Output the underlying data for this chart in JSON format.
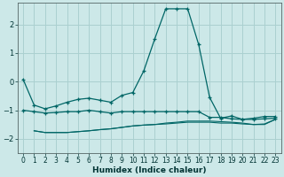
{
  "xlabel": "Humidex (Indice chaleur)",
  "background_color": "#cce8e8",
  "grid_color": "#aad0d0",
  "line_color": "#006666",
  "xlim": [
    -0.5,
    23.5
  ],
  "ylim": [
    -2.5,
    2.75
  ],
  "yticks": [
    -2,
    -1,
    0,
    1,
    2
  ],
  "xticks": [
    0,
    1,
    2,
    3,
    4,
    5,
    6,
    7,
    8,
    9,
    10,
    11,
    12,
    13,
    14,
    15,
    16,
    17,
    18,
    19,
    20,
    21,
    22,
    23
  ],
  "line1_x": [
    0,
    1,
    2,
    3,
    4,
    5,
    6,
    7,
    8,
    9,
    10,
    11,
    12,
    13,
    14,
    15,
    16,
    17,
    18,
    19,
    20,
    21,
    22,
    23
  ],
  "line1_y": [
    0.08,
    -0.82,
    -0.95,
    -0.85,
    -0.72,
    -0.62,
    -0.58,
    -0.65,
    -0.72,
    -0.48,
    -0.38,
    0.38,
    1.5,
    2.55,
    2.55,
    2.55,
    1.3,
    -0.55,
    -1.28,
    -1.2,
    -1.32,
    -1.28,
    -1.22,
    -1.22
  ],
  "line2_x": [
    0,
    1,
    2,
    3,
    4,
    5,
    6,
    7,
    8,
    9,
    10,
    11,
    12,
    13,
    14,
    15,
    16,
    17,
    18,
    19,
    20,
    21,
    22,
    23
  ],
  "line2_y": [
    -1.0,
    -1.05,
    -1.1,
    -1.08,
    -1.05,
    -1.05,
    -1.0,
    -1.05,
    -1.1,
    -1.05,
    -1.05,
    -1.05,
    -1.05,
    -1.05,
    -1.05,
    -1.05,
    -1.05,
    -1.25,
    -1.25,
    -1.3,
    -1.32,
    -1.32,
    -1.3,
    -1.28
  ],
  "line3_x": [
    1,
    2,
    3,
    4,
    5,
    6,
    7,
    8,
    9,
    10,
    11,
    12,
    13,
    14,
    15,
    16,
    17,
    18,
    19,
    20,
    21,
    22,
    23
  ],
  "line3_y": [
    -1.72,
    -1.78,
    -1.78,
    -1.78,
    -1.75,
    -1.72,
    -1.68,
    -1.65,
    -1.6,
    -1.55,
    -1.52,
    -1.5,
    -1.48,
    -1.45,
    -1.42,
    -1.42,
    -1.42,
    -1.45,
    -1.45,
    -1.48,
    -1.5,
    -1.48,
    -1.32
  ],
  "line4_x": [
    1,
    2,
    3,
    4,
    5,
    6,
    7,
    8,
    9,
    10,
    11,
    12,
    13,
    14,
    15,
    16,
    17,
    18,
    19,
    20,
    21,
    22,
    23
  ],
  "line4_y": [
    -1.72,
    -1.78,
    -1.78,
    -1.78,
    -1.75,
    -1.72,
    -1.68,
    -1.65,
    -1.6,
    -1.55,
    -1.52,
    -1.5,
    -1.45,
    -1.42,
    -1.38,
    -1.38,
    -1.38,
    -1.4,
    -1.42,
    -1.45,
    -1.5,
    -1.5,
    -1.32
  ]
}
